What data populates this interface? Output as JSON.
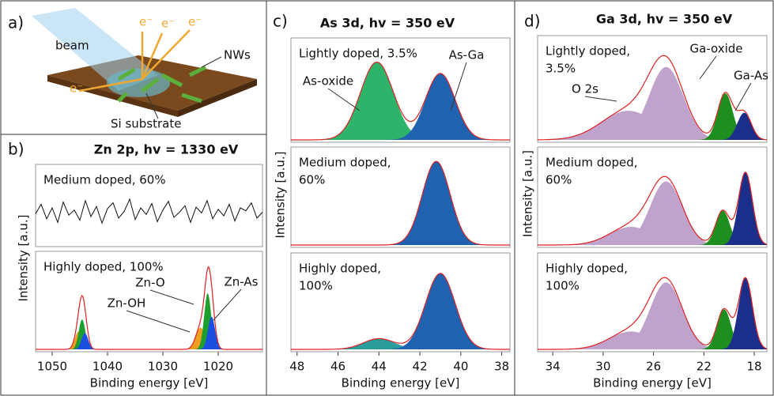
{
  "panel_a": {
    "label": "a)",
    "beam": "beam",
    "nws": "NWs",
    "substrate": "Si substrate",
    "electrons": [
      "e⁻",
      "e⁻",
      "e⁻",
      "e⁻"
    ]
  },
  "chart_data": [
    {
      "type": "spectra",
      "panel": "b)",
      "title": "Zn 2p, hv = 1330 eV",
      "xlabel": "Binding energy [eV]",
      "ylabel": "Intensity [a.u.]",
      "xlim": [
        1053,
        1012
      ],
      "xticks": [
        1050,
        1040,
        1030,
        1020
      ],
      "ylim": [
        0,
        1
      ],
      "subplots": [
        {
          "label": [
            "Medium doped, 60%"
          ],
          "trace": {
            "x": [
              1053,
              1052,
              1051,
              1050,
              1049,
              1048,
              1047,
              1046,
              1045,
              1044,
              1043,
              1042,
              1041,
              1040,
              1039,
              1038,
              1037,
              1036,
              1035,
              1034,
              1033,
              1032,
              1031,
              1030,
              1029,
              1028,
              1027,
              1026,
              1025,
              1024,
              1023,
              1022,
              1021,
              1020,
              1019,
              1018,
              1017,
              1016,
              1015,
              1014,
              1013,
              1012
            ],
            "values": [
              0.42,
              0.55,
              0.35,
              0.5,
              0.3,
              0.58,
              0.4,
              0.47,
              0.33,
              0.6,
              0.38,
              0.52,
              0.29,
              0.49,
              0.57,
              0.36,
              0.45,
              0.62,
              0.34,
              0.5,
              0.41,
              0.56,
              0.31,
              0.47,
              0.59,
              0.37,
              0.44,
              0.53,
              0.3,
              0.51,
              0.43,
              0.6,
              0.35,
              0.48,
              0.39,
              0.55,
              0.32,
              0.5,
              0.46,
              0.57,
              0.36,
              0.44
            ]
          },
          "components": [],
          "annotations": []
        },
        {
          "label": [
            "Highly doped, 100%"
          ],
          "components": [
            {
              "color": "#f0a020",
              "center": 1045.2,
              "height": 0.2,
              "fwhm": 1.6
            },
            {
              "color": "#1e9e2e",
              "center": 1044.6,
              "height": 0.33,
              "fwhm": 1.4
            },
            {
              "color": "#1a4fe0",
              "center": 1044.1,
              "height": 0.18,
              "fwhm": 1.4
            },
            {
              "color": "#f0a020",
              "center": 1023.2,
              "height": 0.24,
              "fwhm": 2.0
            },
            {
              "color": "#1e9e2e",
              "center": 1021.9,
              "height": 0.62,
              "fwhm": 1.5
            },
            {
              "color": "#1a4fe0",
              "center": 1021.2,
              "height": 0.36,
              "fwhm": 1.5
            }
          ],
          "annotations": [
            "Zn-O",
            "Zn-OH",
            "Zn-As"
          ]
        }
      ]
    },
    {
      "type": "spectra",
      "panel": "c)",
      "title": "As 3d, hv = 350 eV",
      "xlabel": "Binding energy [eV]",
      "ylabel": "Intensity [a.u.]",
      "xlim": [
        48.3,
        37.6
      ],
      "xticks": [
        48,
        46,
        44,
        42,
        40,
        38
      ],
      "ylim": [
        0,
        1
      ],
      "subplots": [
        {
          "label": [
            "Lightly doped, 3.5%"
          ],
          "components": [
            {
              "color": "#2db36a",
              "center": 44.1,
              "height": 0.82,
              "fwhm": 1.9
            },
            {
              "color": "#1f63b0",
              "center": 41.0,
              "height": 0.7,
              "fwhm": 1.7
            }
          ],
          "annotations": [
            "As-oxide",
            "As-Ga"
          ]
        },
        {
          "label": [
            "Medium doped,",
            "60%"
          ],
          "components": [
            {
              "color": "#1f63b0",
              "center": 41.2,
              "height": 0.92,
              "fwhm": 1.6
            }
          ],
          "annotations": []
        },
        {
          "label": [
            "Highly doped,",
            "100%"
          ],
          "components": [
            {
              "color": "#2a9d9a",
              "center": 44.0,
              "height": 0.12,
              "fwhm": 1.8
            },
            {
              "color": "#1f63b0",
              "center": 41.0,
              "height": 0.85,
              "fwhm": 1.7
            }
          ],
          "annotations": []
        }
      ]
    },
    {
      "type": "spectra",
      "panel": "d)",
      "title": "Ga 3d, hv = 350 eV",
      "xlabel": "Binding energy [eV]",
      "ylabel": "Intensity [a.u.]",
      "xlim": [
        35.2,
        17.0
      ],
      "xticks": [
        34,
        30,
        26,
        22,
        18
      ],
      "ylim": [
        0,
        1
      ],
      "subplots": [
        {
          "label": [
            "Lightly doped,",
            "3.5%"
          ],
          "components": [
            {
              "color": "#c0a3cc",
              "center": 28.0,
              "height": 0.3,
              "fwhm": 5.0
            },
            {
              "color": "#c0a3cc",
              "center": 25.0,
              "height": 0.75,
              "fwhm": 3.2
            },
            {
              "color": "#1e8f1e",
              "center": 20.3,
              "height": 0.48,
              "fwhm": 1.4
            },
            {
              "color": "#1b2f8a",
              "center": 18.8,
              "height": 0.28,
              "fwhm": 1.3
            }
          ],
          "annotations": [
            "O 2s",
            "Ga-oxide",
            "Ga-As"
          ]
        },
        {
          "label": [
            "Medium doped,",
            "60%"
          ],
          "components": [
            {
              "color": "#c0a3cc",
              "center": 27.8,
              "height": 0.2,
              "fwhm": 4.0
            },
            {
              "color": "#c0a3cc",
              "center": 25.0,
              "height": 0.7,
              "fwhm": 3.0
            },
            {
              "color": "#1e8f1e",
              "center": 20.5,
              "height": 0.38,
              "fwhm": 1.3
            },
            {
              "color": "#1b2f8a",
              "center": 18.7,
              "height": 0.8,
              "fwhm": 1.3
            }
          ],
          "annotations": []
        },
        {
          "label": [
            "Highly doped,",
            "100%"
          ],
          "components": [
            {
              "color": "#c0a3cc",
              "center": 27.8,
              "height": 0.2,
              "fwhm": 4.0
            },
            {
              "color": "#c0a3cc",
              "center": 25.0,
              "height": 0.75,
              "fwhm": 3.0
            },
            {
              "color": "#1e8f1e",
              "center": 20.4,
              "height": 0.45,
              "fwhm": 1.3
            },
            {
              "color": "#1b2f8a",
              "center": 18.7,
              "height": 0.8,
              "fwhm": 1.3
            }
          ],
          "annotations": []
        }
      ]
    }
  ]
}
